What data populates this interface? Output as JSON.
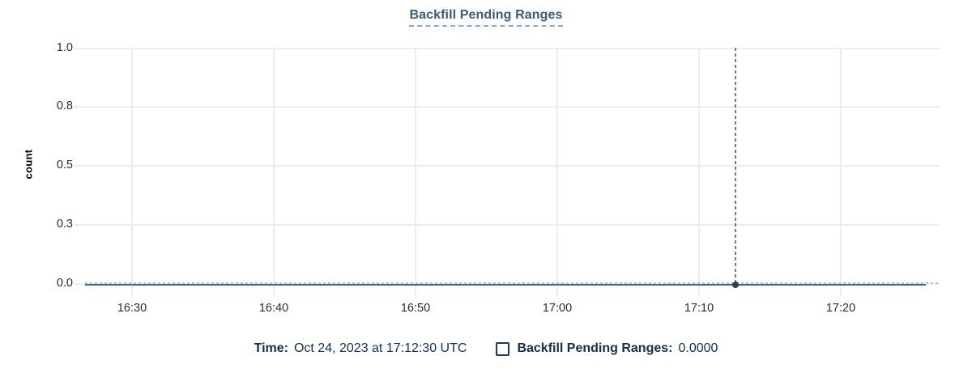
{
  "chart_data": {
    "type": "line",
    "title": "Backfill Pending Ranges",
    "xlabel": "",
    "ylabel": "count",
    "ylim": [
      0,
      1.0
    ],
    "grid": true,
    "ytick_labels": [
      "1.0",
      "0.8",
      "0.5",
      "0.3",
      "0.0"
    ],
    "ytick_values": [
      1.0,
      0.75,
      0.5,
      0.25,
      0.0
    ],
    "xticks": [
      "16:30",
      "16:40",
      "16:50",
      "17:00",
      "17:10",
      "17:20"
    ],
    "x_visible_range": [
      "16:26:40",
      "17:27:00"
    ],
    "series": [
      {
        "name": "Backfill Pending Ranges",
        "color": "#4d6882",
        "line_style": "solid with dashed zero overlay",
        "points": [
          [
            "16:27",
            0.0
          ],
          [
            "16:30",
            0.0
          ],
          [
            "16:40",
            0.0
          ],
          [
            "16:50",
            0.0
          ],
          [
            "17:00",
            0.0
          ],
          [
            "17:10",
            0.0
          ],
          [
            "17:12:30",
            0.0
          ],
          [
            "17:20",
            0.0
          ],
          [
            "17:26",
            0.0
          ]
        ]
      }
    ],
    "crosshair": {
      "x": "17:12:30",
      "y": 0.0
    },
    "legend_position": "bottom-center"
  },
  "legend": {
    "time_label": "Time:",
    "time_value": "Oct 24, 2023 at 17:12:30 UTC",
    "series_label": "Backfill Pending Ranges:",
    "series_value": "0.0000"
  },
  "colors": {
    "title_text": "#3e5a76",
    "title_underline": "#93a6bd",
    "legend_text": "#14304b",
    "series_line": "#4d6882",
    "zero_dashed_line": "#b5c1cf",
    "crosshair": "#66809c",
    "hover_dot": "#2c3e53",
    "gridline": "#ededed",
    "tick_text": "#2b2b2b",
    "background": "#ffffff"
  }
}
